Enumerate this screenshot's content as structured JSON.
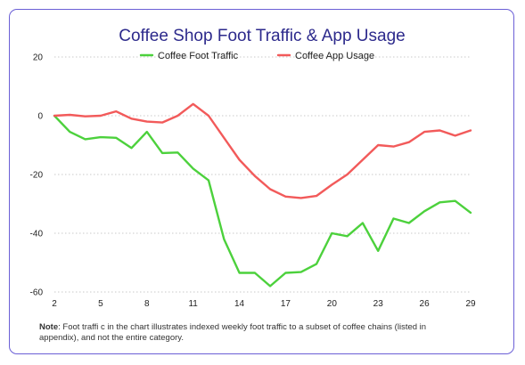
{
  "chart_data": {
    "type": "line",
    "title": "Coffee Shop Foot Traffic & App Usage",
    "xlabel": "",
    "ylabel": "",
    "x": [
      2,
      3,
      4,
      5,
      6,
      7,
      8,
      9,
      10,
      11,
      12,
      13,
      14,
      15,
      16,
      17,
      18,
      19,
      20,
      21,
      22,
      23,
      24,
      25,
      26,
      27,
      28,
      29
    ],
    "x_ticks": [
      2,
      5,
      8,
      11,
      14,
      17,
      20,
      23,
      26,
      29
    ],
    "y_ticks": [
      20,
      0,
      -20,
      -40,
      -60
    ],
    "xlim": [
      2,
      29
    ],
    "ylim": [
      -60,
      20
    ],
    "grid": "horizontal dotted",
    "legend_position": "top",
    "series": [
      {
        "name": "Coffee Foot Traffic",
        "color": "#4cd13c",
        "values": [
          0,
          -5.5,
          -8,
          -7.3,
          -7.5,
          -11,
          -5.5,
          -12.7,
          -12.5,
          -18,
          -22,
          -42,
          -53.5,
          -53.5,
          -58,
          -53.5,
          -53.2,
          -50.5,
          -40,
          -41,
          -36.5,
          -46,
          -35,
          -36.5,
          -32.5,
          -29.5,
          -29,
          -33
        ]
      },
      {
        "name": "Coffee App Usage",
        "color": "#f25a5a",
        "values": [
          0,
          0.3,
          -0.2,
          0,
          1.5,
          -1,
          -2,
          -2.3,
          0,
          4,
          0,
          -7.5,
          -15,
          -20.5,
          -25,
          -27.5,
          -28,
          -27.3,
          -23.5,
          -20,
          -15,
          -10,
          -10.5,
          -9,
          -5.5,
          -5,
          -6.8,
          -5
        ]
      }
    ]
  },
  "note": {
    "label": "Note",
    "text": ": Foot traffi c in the chart illustrates indexed weekly foot traffic to a subset of coffee chains (listed in appendix), and not the entire category."
  }
}
